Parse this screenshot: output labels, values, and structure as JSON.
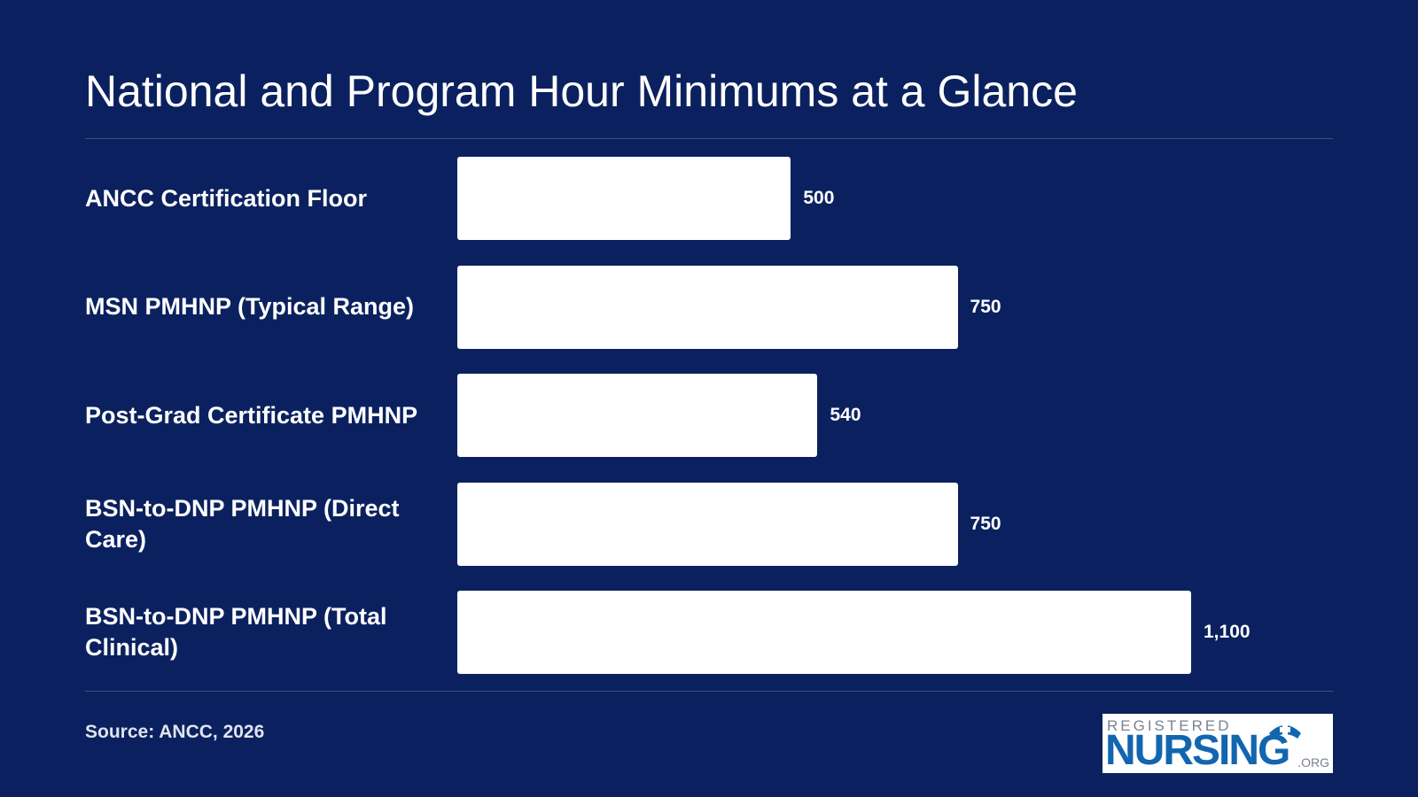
{
  "title": "National and Program Hour Minimums at a Glance",
  "source": "Source: ANCC, 2026",
  "logo": {
    "top_text": "REGISTERED",
    "main_text": "NURSING",
    "suffix": ".ORG"
  },
  "colors": {
    "background": "#0b215f",
    "bar": "#ffffff",
    "text": "#ffffff",
    "logo_blue": "#1266b0"
  },
  "chart_data": {
    "type": "bar",
    "orientation": "horizontal",
    "title": "National and Program Hour Minimums at a Glance",
    "categories": [
      "ANCC Certification Floor",
      "MSN PMHNP (Typical Range)",
      "Post-Grad Certificate PMHNP",
      "BSN-to-DNP PMHNP (Direct Care)",
      "BSN-to-DNP PMHNP (Total Clinical)"
    ],
    "values": [
      500,
      750,
      540,
      750,
      1100
    ],
    "value_labels": [
      "500",
      "750",
      "540",
      "750",
      "1,100"
    ],
    "xlim": [
      0,
      1100
    ],
    "grid": false,
    "legend": "none"
  }
}
